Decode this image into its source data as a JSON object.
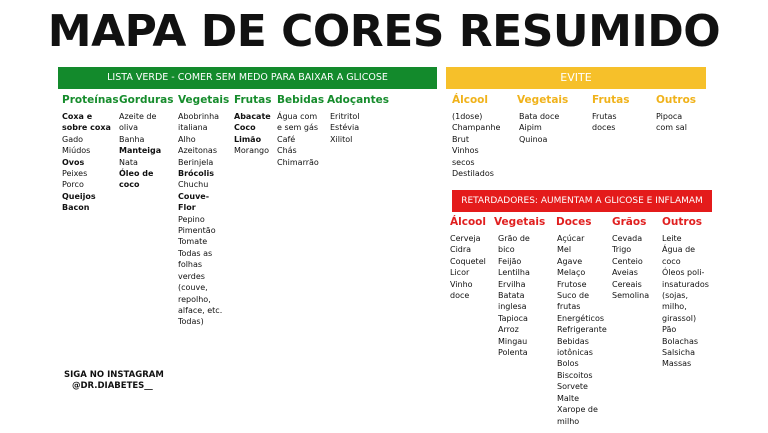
{
  "title": "MAPA DE CORES RESUMIDO",
  "green": {
    "banner": "LISTA VERDE - COMER SEM MEDO PARA BAIXAR A GLICOSE",
    "cols": [
      {
        "head": "Proteínas",
        "items": [
          "Coxa e",
          "sobre coxa",
          "Gado",
          "Miúdos",
          "Ovos",
          "Peixes",
          "Porco",
          "Queijos",
          "Bacon"
        ]
      },
      {
        "head": "Gorduras",
        "items": [
          "Azeite de",
          "oliva",
          "Banha",
          "Manteiga",
          "Nata",
          "Óleo de",
          "coco"
        ]
      },
      {
        "head": "Vegetais",
        "items": [
          "Abobrinha",
          "italiana",
          "Alho",
          "Azeitonas",
          "Berinjela",
          "Brócolis",
          "Chuchu",
          "Couve-",
          "Flor",
          "Pepino",
          "Pimentão",
          "Tomate",
          "Todas as",
          "folhas",
          "verdes",
          "(couve,",
          "repolho,",
          "alface, etc.",
          "Todas)"
        ]
      },
      {
        "head": "Frutas",
        "items": [
          "Abacate",
          "Coco",
          "Limão",
          "Morango"
        ]
      },
      {
        "head": "Bebidas",
        "items": [
          "Água com",
          "e sem gás",
          "Café",
          "Chás",
          "Chimarrão"
        ]
      },
      {
        "head": "Adoçantes",
        "items": [
          "Eritritol",
          "Estévia",
          "Xilitol"
        ]
      }
    ]
  },
  "yellow": {
    "banner": "EVITE",
    "cols": [
      {
        "head": "Álcool",
        "items": [
          "(1dose)",
          "Champanhe",
          "Brut",
          "Vinhos",
          "secos",
          "Destilados"
        ]
      },
      {
        "head": "Vegetais",
        "items": [
          "Bata doce",
          "Aipim",
          "Quinoa"
        ]
      },
      {
        "head": "Frutas",
        "items": [
          "Frutas",
          "doces"
        ]
      },
      {
        "head": "Outros",
        "items": [
          "Pipoca",
          "com sal"
        ]
      }
    ]
  },
  "red": {
    "banner": "RETARDADORES: AUMENTAM A GLICOSE E INFLAMAM",
    "cols": [
      {
        "head": "Álcool",
        "items": [
          "Cerveja",
          "Cidra",
          "Coquetel",
          "Licor",
          "Vinho",
          "doce"
        ]
      },
      {
        "head": "Vegetais",
        "items": [
          "Grão de",
          "bico",
          "Feijão",
          "Lentilha",
          "Ervilha",
          "Batata",
          "inglesa",
          "Tapioca",
          "Arroz",
          "Mingau",
          "Polenta"
        ]
      },
      {
        "head": "Doces",
        "items": [
          "Açúcar",
          "Mel",
          "Agave",
          "Melaço",
          "Frutose",
          "Suco de",
          "frutas",
          "Energéticos",
          "Refrigerante",
          "Bebidas",
          "iotônicas",
          "Bolos",
          "Biscoitos",
          "Sorvete",
          "Malte",
          "Xarope de",
          "milho"
        ]
      },
      {
        "head": "Grãos",
        "items": [
          "Cevada",
          "Trigo",
          "Centeio",
          "Aveias",
          "Cereais",
          "Semolina"
        ]
      },
      {
        "head": "Outros",
        "items": [
          "Leite",
          "Água de",
          "coco",
          "Óleos poli-",
          "insaturados",
          "(sojas,",
          "milho,",
          "girassol)",
          "Pão",
          "Bolachas",
          "Salsicha",
          "Massas"
        ]
      }
    ]
  },
  "instagram": {
    "line1": "SIGA NO INSTAGRAM",
    "line2": "@DR.DIABETES__"
  }
}
